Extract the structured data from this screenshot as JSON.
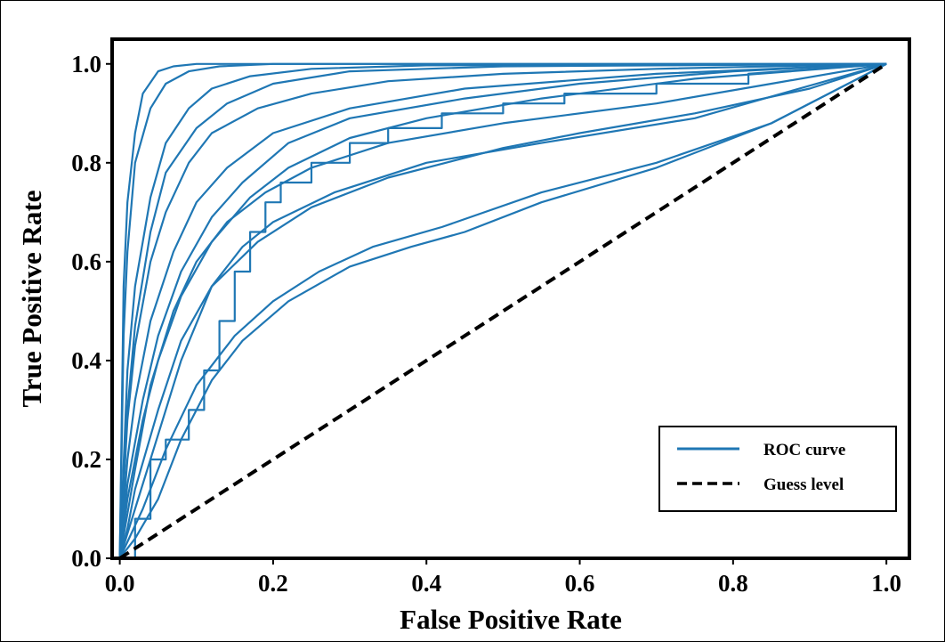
{
  "chart_data": {
    "type": "line",
    "title": "",
    "xlabel": "False Positive Rate",
    "ylabel": "True Positive Rate",
    "xlim": [
      -0.01,
      1.03
    ],
    "ylim": [
      0.0,
      1.05
    ],
    "grid": false,
    "xticks": [
      "0.0",
      "0.2",
      "0.4",
      "0.6",
      "0.8",
      "1.0"
    ],
    "yticks": [
      "0.0",
      "0.2",
      "0.4",
      "0.6",
      "0.8",
      "1.0"
    ],
    "legend": {
      "placement": "lower-right",
      "entries": [
        {
          "label": "ROC curve",
          "color": "#1f77b4",
          "style": "solid"
        },
        {
          "label": "Guess level",
          "color": "#000000",
          "style": "dashed"
        }
      ]
    },
    "series_color": "#1f77b4",
    "guess_line": {
      "x": [
        0,
        1
      ],
      "y": [
        0,
        1
      ]
    },
    "series": [
      {
        "x": [
          0,
          0.005,
          0.01,
          0.02,
          0.03,
          0.05,
          0.07,
          0.1,
          0.15,
          1.0
        ],
        "y": [
          0,
          0.55,
          0.72,
          0.86,
          0.94,
          0.985,
          0.995,
          1.0,
          1.0,
          1.0
        ]
      },
      {
        "x": [
          0,
          0.005,
          0.01,
          0.02,
          0.04,
          0.06,
          0.09,
          0.13,
          0.2,
          1.0
        ],
        "y": [
          0,
          0.45,
          0.62,
          0.8,
          0.91,
          0.96,
          0.985,
          0.995,
          1.0,
          1.0
        ]
      },
      {
        "x": [
          0,
          0.01,
          0.02,
          0.04,
          0.06,
          0.09,
          0.12,
          0.17,
          0.25,
          0.4,
          1.0
        ],
        "y": [
          0,
          0.38,
          0.55,
          0.73,
          0.84,
          0.91,
          0.95,
          0.975,
          0.99,
          0.997,
          1.0
        ]
      },
      {
        "x": [
          0,
          0.01,
          0.02,
          0.04,
          0.06,
          0.1,
          0.14,
          0.2,
          0.3,
          0.5,
          1.0
        ],
        "y": [
          0,
          0.3,
          0.47,
          0.66,
          0.78,
          0.87,
          0.92,
          0.96,
          0.985,
          0.995,
          1.0
        ]
      },
      {
        "x": [
          0,
          0.01,
          0.02,
          0.04,
          0.06,
          0.09,
          0.12,
          0.18,
          0.25,
          0.35,
          0.5,
          0.7,
          1.0
        ],
        "y": [
          0,
          0.28,
          0.43,
          0.6,
          0.7,
          0.8,
          0.86,
          0.91,
          0.94,
          0.965,
          0.98,
          0.99,
          1.0
        ]
      },
      {
        "x": [
          0,
          0.01,
          0.02,
          0.04,
          0.07,
          0.1,
          0.14,
          0.2,
          0.3,
          0.45,
          0.7,
          1.0
        ],
        "y": [
          0,
          0.2,
          0.32,
          0.48,
          0.62,
          0.72,
          0.79,
          0.86,
          0.91,
          0.95,
          0.98,
          1.0
        ]
      },
      {
        "x": [
          0,
          0.01,
          0.03,
          0.05,
          0.08,
          0.12,
          0.16,
          0.22,
          0.3,
          0.45,
          0.6,
          0.8,
          1.0
        ],
        "y": [
          0,
          0.15,
          0.32,
          0.45,
          0.58,
          0.69,
          0.76,
          0.84,
          0.89,
          0.93,
          0.96,
          0.985,
          1.0
        ]
      },
      {
        "x": [
          0,
          0.01,
          0.03,
          0.05,
          0.08,
          0.12,
          0.17,
          0.22,
          0.3,
          0.4,
          0.55,
          0.75,
          1.0
        ],
        "y": [
          0,
          0.12,
          0.28,
          0.4,
          0.53,
          0.64,
          0.73,
          0.79,
          0.85,
          0.89,
          0.93,
          0.97,
          1.0
        ]
      },
      {
        "x": [
          0,
          0.02,
          0.04,
          0.07,
          0.1,
          0.14,
          0.19,
          0.25,
          0.35,
          0.5,
          0.7,
          0.85,
          1.0
        ],
        "y": [
          0,
          0.18,
          0.35,
          0.5,
          0.6,
          0.68,
          0.74,
          0.79,
          0.84,
          0.88,
          0.92,
          0.96,
          1.0
        ]
      },
      {
        "x": [
          0,
          0.02,
          0.05,
          0.08,
          0.12,
          0.16,
          0.2,
          0.28,
          0.4,
          0.55,
          0.75,
          1.0
        ],
        "y": [
          0,
          0.1,
          0.25,
          0.4,
          0.55,
          0.63,
          0.68,
          0.74,
          0.8,
          0.84,
          0.89,
          1.0
        ]
      },
      {
        "x": [
          0,
          0.01,
          0.02,
          0.05,
          0.08,
          0.12,
          0.18,
          0.25,
          0.35,
          0.5,
          0.6,
          0.75,
          0.9,
          1.0
        ],
        "y": [
          0,
          0.06,
          0.14,
          0.3,
          0.44,
          0.55,
          0.64,
          0.71,
          0.77,
          0.83,
          0.86,
          0.9,
          0.95,
          1.0
        ]
      },
      {
        "x": [
          0,
          0.03,
          0.06,
          0.1,
          0.15,
          0.2,
          0.26,
          0.33,
          0.42,
          0.55,
          0.7,
          0.85,
          1.0
        ],
        "y": [
          0,
          0.1,
          0.22,
          0.35,
          0.45,
          0.52,
          0.58,
          0.63,
          0.67,
          0.74,
          0.8,
          0.88,
          1.0
        ]
      },
      {
        "x": [
          0,
          0.02,
          0.05,
          0.08,
          0.12,
          0.16,
          0.22,
          0.3,
          0.38,
          0.45,
          0.55,
          0.7,
          0.85,
          1.0
        ],
        "y": [
          0,
          0.04,
          0.12,
          0.24,
          0.36,
          0.44,
          0.52,
          0.59,
          0.63,
          0.66,
          0.72,
          0.79,
          0.88,
          1.0
        ]
      },
      {
        "x": [
          0,
          0.02,
          0.02,
          0.04,
          0.04,
          0.06,
          0.06,
          0.09,
          0.09,
          0.11,
          0.11,
          0.13,
          0.13,
          0.15,
          0.15,
          0.17,
          0.17,
          0.19,
          0.19,
          0.21,
          0.21,
          0.25,
          0.25,
          0.3,
          0.3,
          0.35,
          0.35,
          0.42,
          0.42,
          0.5,
          0.5,
          0.58,
          0.58,
          0.7,
          0.7,
          0.82,
          0.82,
          1.0
        ],
        "y": [
          0,
          0,
          0.08,
          0.08,
          0.2,
          0.2,
          0.24,
          0.24,
          0.3,
          0.3,
          0.38,
          0.38,
          0.48,
          0.48,
          0.58,
          0.58,
          0.66,
          0.66,
          0.72,
          0.72,
          0.76,
          0.76,
          0.8,
          0.8,
          0.84,
          0.84,
          0.87,
          0.87,
          0.9,
          0.9,
          0.92,
          0.92,
          0.94,
          0.94,
          0.96,
          0.96,
          0.98,
          1.0
        ]
      }
    ]
  }
}
